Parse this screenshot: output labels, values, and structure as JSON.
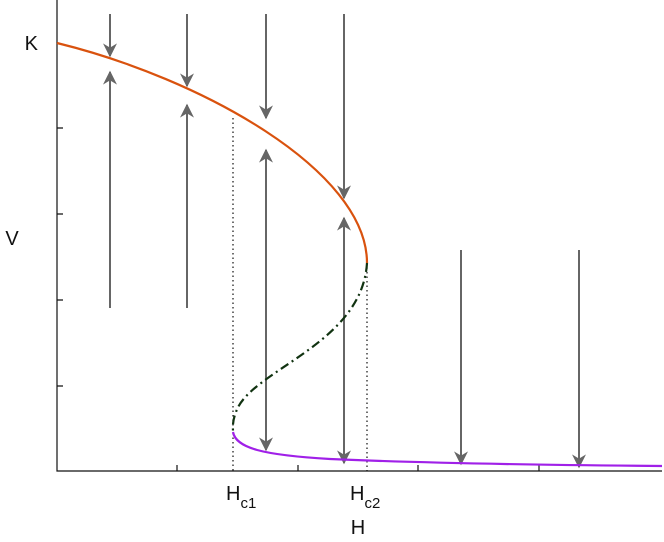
{
  "axis": {
    "x_label": "H",
    "y_label": "V",
    "y_mark": "K"
  },
  "markers": [
    {
      "base": "H",
      "sub": "c1"
    },
    {
      "base": "H",
      "sub": "c2"
    }
  ]
}
